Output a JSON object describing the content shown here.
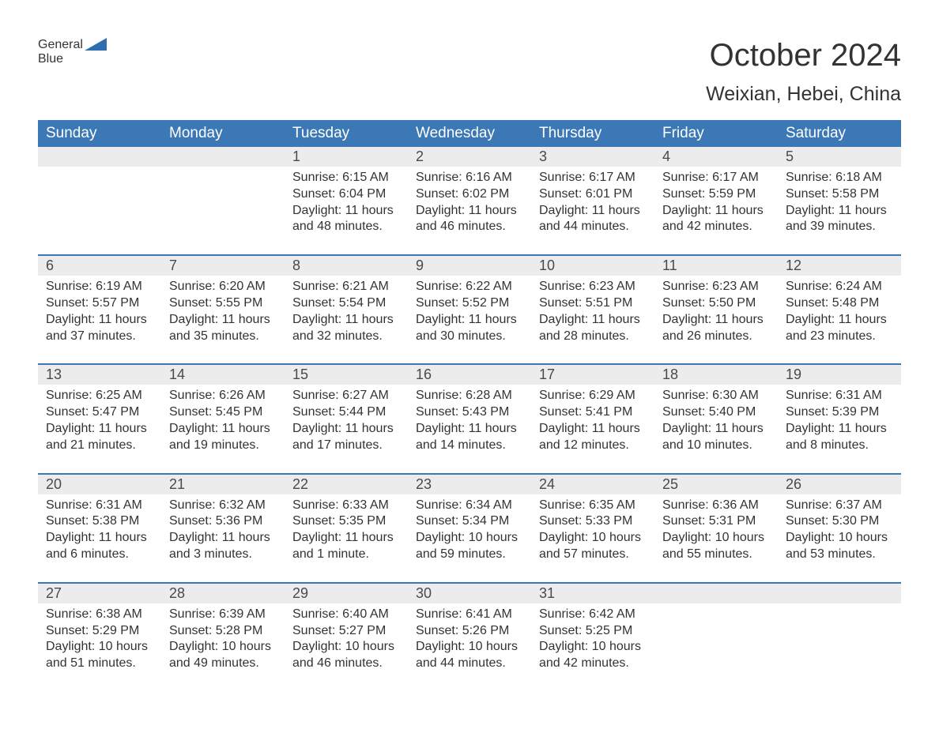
{
  "logo": {
    "text1": "General",
    "text2": "Blue"
  },
  "title": "October 2024",
  "location": "Weixian, Hebei, China",
  "colors": {
    "header_bg": "#3b78b5",
    "header_text": "#ffffff",
    "daynum_bg": "#ececec",
    "text": "#333333",
    "accent": "#2f6fb0"
  },
  "day_names": [
    "Sunday",
    "Monday",
    "Tuesday",
    "Wednesday",
    "Thursday",
    "Friday",
    "Saturday"
  ],
  "weeks": [
    [
      null,
      null,
      {
        "d": "1",
        "sr": "Sunrise: 6:15 AM",
        "ss": "Sunset: 6:04 PM",
        "dl1": "Daylight: 11 hours",
        "dl2": "and 48 minutes."
      },
      {
        "d": "2",
        "sr": "Sunrise: 6:16 AM",
        "ss": "Sunset: 6:02 PM",
        "dl1": "Daylight: 11 hours",
        "dl2": "and 46 minutes."
      },
      {
        "d": "3",
        "sr": "Sunrise: 6:17 AM",
        "ss": "Sunset: 6:01 PM",
        "dl1": "Daylight: 11 hours",
        "dl2": "and 44 minutes."
      },
      {
        "d": "4",
        "sr": "Sunrise: 6:17 AM",
        "ss": "Sunset: 5:59 PM",
        "dl1": "Daylight: 11 hours",
        "dl2": "and 42 minutes."
      },
      {
        "d": "5",
        "sr": "Sunrise: 6:18 AM",
        "ss": "Sunset: 5:58 PM",
        "dl1": "Daylight: 11 hours",
        "dl2": "and 39 minutes."
      }
    ],
    [
      {
        "d": "6",
        "sr": "Sunrise: 6:19 AM",
        "ss": "Sunset: 5:57 PM",
        "dl1": "Daylight: 11 hours",
        "dl2": "and 37 minutes."
      },
      {
        "d": "7",
        "sr": "Sunrise: 6:20 AM",
        "ss": "Sunset: 5:55 PM",
        "dl1": "Daylight: 11 hours",
        "dl2": "and 35 minutes."
      },
      {
        "d": "8",
        "sr": "Sunrise: 6:21 AM",
        "ss": "Sunset: 5:54 PM",
        "dl1": "Daylight: 11 hours",
        "dl2": "and 32 minutes."
      },
      {
        "d": "9",
        "sr": "Sunrise: 6:22 AM",
        "ss": "Sunset: 5:52 PM",
        "dl1": "Daylight: 11 hours",
        "dl2": "and 30 minutes."
      },
      {
        "d": "10",
        "sr": "Sunrise: 6:23 AM",
        "ss": "Sunset: 5:51 PM",
        "dl1": "Daylight: 11 hours",
        "dl2": "and 28 minutes."
      },
      {
        "d": "11",
        "sr": "Sunrise: 6:23 AM",
        "ss": "Sunset: 5:50 PM",
        "dl1": "Daylight: 11 hours",
        "dl2": "and 26 minutes."
      },
      {
        "d": "12",
        "sr": "Sunrise: 6:24 AM",
        "ss": "Sunset: 5:48 PM",
        "dl1": "Daylight: 11 hours",
        "dl2": "and 23 minutes."
      }
    ],
    [
      {
        "d": "13",
        "sr": "Sunrise: 6:25 AM",
        "ss": "Sunset: 5:47 PM",
        "dl1": "Daylight: 11 hours",
        "dl2": "and 21 minutes."
      },
      {
        "d": "14",
        "sr": "Sunrise: 6:26 AM",
        "ss": "Sunset: 5:45 PM",
        "dl1": "Daylight: 11 hours",
        "dl2": "and 19 minutes."
      },
      {
        "d": "15",
        "sr": "Sunrise: 6:27 AM",
        "ss": "Sunset: 5:44 PM",
        "dl1": "Daylight: 11 hours",
        "dl2": "and 17 minutes."
      },
      {
        "d": "16",
        "sr": "Sunrise: 6:28 AM",
        "ss": "Sunset: 5:43 PM",
        "dl1": "Daylight: 11 hours",
        "dl2": "and 14 minutes."
      },
      {
        "d": "17",
        "sr": "Sunrise: 6:29 AM",
        "ss": "Sunset: 5:41 PM",
        "dl1": "Daylight: 11 hours",
        "dl2": "and 12 minutes."
      },
      {
        "d": "18",
        "sr": "Sunrise: 6:30 AM",
        "ss": "Sunset: 5:40 PM",
        "dl1": "Daylight: 11 hours",
        "dl2": "and 10 minutes."
      },
      {
        "d": "19",
        "sr": "Sunrise: 6:31 AM",
        "ss": "Sunset: 5:39 PM",
        "dl1": "Daylight: 11 hours",
        "dl2": "and 8 minutes."
      }
    ],
    [
      {
        "d": "20",
        "sr": "Sunrise: 6:31 AM",
        "ss": "Sunset: 5:38 PM",
        "dl1": "Daylight: 11 hours",
        "dl2": "and 6 minutes."
      },
      {
        "d": "21",
        "sr": "Sunrise: 6:32 AM",
        "ss": "Sunset: 5:36 PM",
        "dl1": "Daylight: 11 hours",
        "dl2": "and 3 minutes."
      },
      {
        "d": "22",
        "sr": "Sunrise: 6:33 AM",
        "ss": "Sunset: 5:35 PM",
        "dl1": "Daylight: 11 hours",
        "dl2": "and 1 minute."
      },
      {
        "d": "23",
        "sr": "Sunrise: 6:34 AM",
        "ss": "Sunset: 5:34 PM",
        "dl1": "Daylight: 10 hours",
        "dl2": "and 59 minutes."
      },
      {
        "d": "24",
        "sr": "Sunrise: 6:35 AM",
        "ss": "Sunset: 5:33 PM",
        "dl1": "Daylight: 10 hours",
        "dl2": "and 57 minutes."
      },
      {
        "d": "25",
        "sr": "Sunrise: 6:36 AM",
        "ss": "Sunset: 5:31 PM",
        "dl1": "Daylight: 10 hours",
        "dl2": "and 55 minutes."
      },
      {
        "d": "26",
        "sr": "Sunrise: 6:37 AM",
        "ss": "Sunset: 5:30 PM",
        "dl1": "Daylight: 10 hours",
        "dl2": "and 53 minutes."
      }
    ],
    [
      {
        "d": "27",
        "sr": "Sunrise: 6:38 AM",
        "ss": "Sunset: 5:29 PM",
        "dl1": "Daylight: 10 hours",
        "dl2": "and 51 minutes."
      },
      {
        "d": "28",
        "sr": "Sunrise: 6:39 AM",
        "ss": "Sunset: 5:28 PM",
        "dl1": "Daylight: 10 hours",
        "dl2": "and 49 minutes."
      },
      {
        "d": "29",
        "sr": "Sunrise: 6:40 AM",
        "ss": "Sunset: 5:27 PM",
        "dl1": "Daylight: 10 hours",
        "dl2": "and 46 minutes."
      },
      {
        "d": "30",
        "sr": "Sunrise: 6:41 AM",
        "ss": "Sunset: 5:26 PM",
        "dl1": "Daylight: 10 hours",
        "dl2": "and 44 minutes."
      },
      {
        "d": "31",
        "sr": "Sunrise: 6:42 AM",
        "ss": "Sunset: 5:25 PM",
        "dl1": "Daylight: 10 hours",
        "dl2": "and 42 minutes."
      },
      null,
      null
    ]
  ]
}
